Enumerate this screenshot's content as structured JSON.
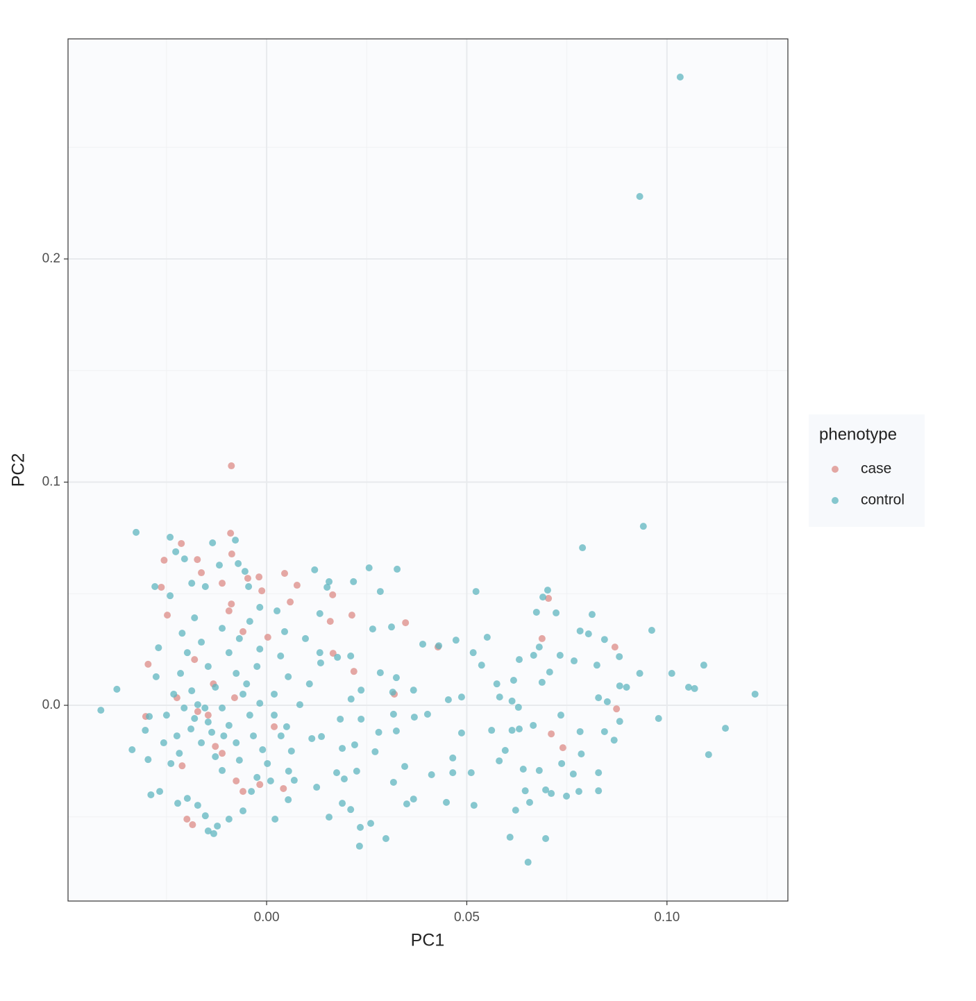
{
  "chart_data": {
    "type": "scatter",
    "x_label": "PC1",
    "y_label": "PC2",
    "legend_title": "phenotype",
    "legend_position": "right",
    "grid": true,
    "xlim": [
      -0.0496,
      0.1302
    ],
    "ylim": [
      -0.0877,
      0.2986
    ],
    "xticks": [
      {
        "value": 0,
        "label": "0.00"
      },
      {
        "value": 0.05,
        "label": "0.05"
      },
      {
        "value": 0.1,
        "label": "0.10"
      }
    ],
    "yticks": [
      {
        "value": 0,
        "label": "0.0"
      },
      0.1,
      0.2
    ],
    "xminor": [
      -0.025,
      0.025,
      0.075,
      0.125
    ],
    "yminor": [
      -0.05,
      0.05,
      0.15,
      0.25
    ],
    "series": [
      {
        "name": "case",
        "color": "#DC8B85",
        "x": [
          -0.0088,
          -0.0213,
          -0.0256,
          -0.009,
          -0.0087,
          -0.0173,
          0.0045,
          0.0076,
          -0.0019,
          -0.0047,
          -0.0012,
          0.0059,
          0.0165,
          0.0213,
          0.0159,
          0.0347,
          0.0428,
          0.0166,
          0.0218,
          0.0003,
          -0.0263,
          -0.0248,
          -0.0296,
          -0.0302,
          0.0019,
          0.0042,
          -0.0017,
          -0.0199,
          -0.0185,
          0.0704,
          0.0688,
          0.087,
          0.0874,
          0.0711,
          0.074,
          0.0319,
          -0.0163,
          -0.0111,
          -0.0088,
          -0.0094,
          -0.0146,
          -0.0172,
          -0.0128,
          -0.0111,
          -0.0076,
          -0.0211,
          -0.0224,
          -0.018,
          -0.0059,
          -0.0133,
          -0.008,
          -0.0059
        ],
        "values": [
          0.1073,
          0.0725,
          0.065,
          0.0771,
          0.0678,
          0.0653,
          0.0591,
          0.0538,
          0.0575,
          0.0569,
          0.0513,
          0.0463,
          0.0495,
          0.0404,
          0.0376,
          0.037,
          0.0261,
          0.0233,
          0.0152,
          0.0305,
          0.0529,
          0.0404,
          0.0184,
          -0.005,
          -0.0096,
          -0.0373,
          -0.0355,
          -0.051,
          -0.0535,
          0.0479,
          0.0299,
          0.0261,
          -0.0016,
          -0.0128,
          -0.019,
          0.005,
          0.0594,
          0.0547,
          0.0454,
          0.0423,
          -0.0044,
          -0.0028,
          -0.0184,
          -0.0215,
          -0.0339,
          -0.0271,
          0.0034,
          0.0205,
          0.033,
          0.0096,
          0.0034,
          -0.0386
        ]
      },
      {
        "name": "control",
        "color": "#5FB5BF",
        "x": [
          0.1033,
          0.0932,
          0.0941,
          0.0789,
          0.122,
          0.1146,
          0.1104,
          0.1092,
          0.1012,
          0.0962,
          0.0979,
          0.0653,
          0.0697,
          0.0608,
          0.0298,
          0.0232,
          -0.0414,
          -0.0374,
          -0.0326,
          -0.0241,
          -0.0078,
          0.0256,
          0.0326,
          0.012,
          0.0284,
          0.0523,
          0.0217,
          0.0156,
          0.0674,
          0.0723,
          0.0813,
          0.0783,
          0.0804,
          0.0844,
          0.0881,
          0.0825,
          0.0768,
          0.0733,
          0.0667,
          0.0631,
          0.0707,
          0.0617,
          0.0575,
          0.0537,
          0.0551,
          0.0516,
          0.0473,
          0.043,
          0.039,
          0.0312,
          0.0265,
          0.0487,
          0.0454,
          0.0402,
          0.0369,
          0.0317,
          0.0324,
          0.028,
          0.0236,
          0.0184,
          0.0137,
          0.0189,
          0.022,
          0.0271,
          0.0345,
          0.0317,
          0.035,
          0.0367,
          0.0412,
          0.0449,
          0.0465,
          0.0465,
          0.0511,
          0.0518,
          0.0487,
          0.0562,
          0.0613,
          0.0631,
          0.0581,
          0.0596,
          0.0641,
          0.0681,
          0.0646,
          0.0622,
          0.0657,
          0.0697,
          0.0711,
          0.0737,
          0.0766,
          0.0749,
          0.078,
          0.0829,
          0.0829,
          0.0786,
          0.0783,
          0.0735,
          0.0666,
          0.0844,
          0.0868,
          0.0882,
          0.0851,
          0.0829,
          0.0882,
          0.0932,
          0.0899,
          0.1054,
          0.1069,
          0.0613,
          0.0629,
          0.0688,
          0.0681,
          0.069,
          0.0702,
          0.0582,
          0.0367,
          0.0315,
          0.0324,
          0.0284,
          0.0236,
          0.0211,
          0.021,
          0.0177,
          0.0135,
          0.0133,
          0.0133,
          0.0151,
          0.0097,
          0.0107,
          0.0083,
          0.005,
          0.0062,
          0.0055,
          0.0054,
          0.0021,
          0.0069,
          0.0125,
          0.0156,
          0.0189,
          0.021,
          0.0234,
          0.026,
          0.0175,
          0.0194,
          0.0225,
          0.0113,
          -0.0336,
          -0.0293,
          -0.0296,
          -0.0289,
          -0.0267,
          -0.0276,
          -0.027,
          -0.0279,
          -0.0241,
          -0.0227,
          -0.0205,
          -0.0187,
          -0.0153,
          -0.0135,
          -0.0118,
          -0.0071,
          -0.0054,
          -0.0045,
          -0.0017,
          -0.0042,
          -0.0017,
          0.0026,
          0.0045,
          0.0035,
          0.0054,
          0.0019,
          -0.0017,
          -0.0042,
          -0.0033,
          -0.001,
          0.0002,
          -0.0024,
          -0.0038,
          -0.0059,
          -0.0094,
          -0.0123,
          -0.0146,
          -0.0132,
          -0.0153,
          -0.0172,
          -0.0198,
          -0.0222,
          -0.0239,
          -0.0224,
          -0.025,
          -0.0232,
          -0.0215,
          -0.0198,
          -0.0211,
          -0.018,
          -0.0163,
          -0.0146,
          -0.0128,
          -0.0111,
          -0.0094,
          -0.0146,
          -0.0172,
          -0.0189,
          -0.0163,
          -0.0128,
          -0.0111,
          -0.0068,
          -0.0076,
          -0.0059,
          -0.0076,
          -0.0094,
          -0.0111,
          -0.0068,
          -0.005,
          -0.0024,
          -0.0154,
          -0.0206,
          -0.018,
          -0.0137,
          -0.0107,
          -0.0187,
          -0.0218,
          -0.0257,
          -0.0303,
          0.0019,
          0.0036,
          0.001
        ],
        "values": [
          0.2815,
          0.228,
          0.0802,
          0.0706,
          0.005,
          -0.0103,
          -0.0221,
          0.018,
          0.0143,
          0.0336,
          -0.0059,
          -0.0703,
          -0.0597,
          -0.0591,
          -0.0597,
          -0.0631,
          -0.0022,
          0.0072,
          0.0775,
          0.0753,
          0.074,
          0.0616,
          0.061,
          0.0607,
          0.051,
          0.051,
          0.0554,
          0.0554,
          0.0417,
          0.0414,
          0.0407,
          0.0333,
          0.032,
          0.0295,
          0.0218,
          0.018,
          0.0199,
          0.0224,
          0.0224,
          0.0205,
          0.0149,
          0.0112,
          0.0096,
          0.018,
          0.0305,
          0.0236,
          0.0292,
          0.0267,
          0.0274,
          0.0351,
          0.0342,
          0.0037,
          0.0025,
          -0.004,
          -0.0053,
          -0.004,
          -0.0115,
          -0.0121,
          -0.0062,
          -0.0062,
          -0.014,
          -0.0193,
          -0.0177,
          -0.0208,
          -0.0274,
          -0.0345,
          -0.0442,
          -0.042,
          -0.0311,
          -0.0435,
          -0.0302,
          -0.0236,
          -0.0302,
          -0.0448,
          -0.0124,
          -0.0112,
          -0.0112,
          -0.0106,
          -0.0249,
          -0.0202,
          -0.0286,
          -0.0292,
          -0.0383,
          -0.047,
          -0.0435,
          -0.0379,
          -0.0395,
          -0.0261,
          -0.0308,
          -0.0407,
          -0.0386,
          -0.0383,
          -0.0302,
          -0.0218,
          -0.0118,
          -0.0044,
          -0.009,
          -0.0118,
          -0.0156,
          -0.0072,
          0.0016,
          0.0034,
          0.0087,
          0.0143,
          0.0081,
          0.0081,
          0.0075,
          0.0019,
          -0.0009,
          0.0103,
          0.0261,
          0.0485,
          0.0516,
          0.0037,
          0.0068,
          0.0059,
          0.0124,
          0.0146,
          0.0068,
          0.0028,
          0.0221,
          0.0215,
          0.019,
          0.0236,
          0.0411,
          0.0529,
          0.0299,
          0.0096,
          0.0003,
          -0.0096,
          -0.0205,
          -0.0295,
          -0.0423,
          -0.051,
          -0.0336,
          -0.0367,
          -0.0501,
          -0.0439,
          -0.0467,
          -0.0547,
          -0.0529,
          -0.0302,
          -0.033,
          -0.0295,
          -0.0149,
          -0.0199,
          -0.005,
          -0.0243,
          -0.0401,
          -0.0386,
          0.0128,
          0.0258,
          0.0532,
          0.0491,
          0.0688,
          0.0656,
          0.0547,
          0.0532,
          0.0728,
          0.0628,
          0.0635,
          0.06,
          0.0532,
          0.0439,
          0.0376,
          0.0252,
          0.0423,
          0.033,
          0.0221,
          0.0128,
          0.005,
          0.0009,
          -0.0044,
          -0.0137,
          -0.0199,
          -0.0261,
          -0.0323,
          -0.0386,
          -0.0473,
          -0.051,
          -0.0541,
          -0.0563,
          -0.0575,
          -0.0495,
          -0.0448,
          -0.0417,
          -0.0439,
          -0.0261,
          -0.0137,
          -0.0044,
          0.005,
          0.0143,
          0.0236,
          0.0323,
          0.0392,
          0.0283,
          0.0174,
          0.0081,
          -0.0012,
          -0.009,
          -0.0075,
          0.0003,
          -0.0106,
          -0.0168,
          -0.023,
          -0.0292,
          -0.0246,
          -0.0168,
          0.005,
          0.0143,
          0.0236,
          0.0345,
          0.0299,
          0.0096,
          0.0174,
          -0.0012,
          -0.0012,
          -0.0059,
          -0.0121,
          -0.0137,
          0.0065,
          -0.0215,
          -0.0168,
          -0.0112,
          -0.0044,
          -0.0137,
          -0.0339
        ]
      }
    ]
  }
}
